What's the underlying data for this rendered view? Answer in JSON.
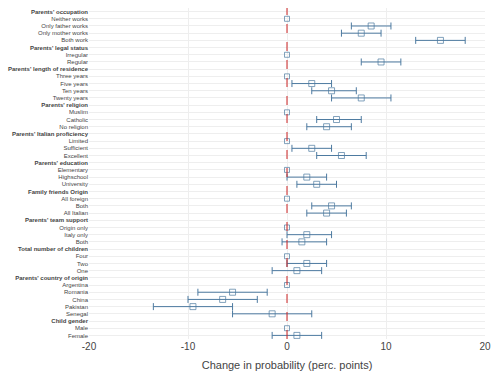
{
  "chart_data": {
    "type": "dot",
    "orientation": "horizontal",
    "xlabel": "Change in probability (perc. points)",
    "categories": [
      "Parents' occupation",
      "Neither works",
      "Only father works",
      "Only mother works",
      "Both work",
      "Parents' legal status",
      "Irregular",
      "Regular",
      "Parents' length of residence",
      "Three years",
      "Five years",
      "Ten years",
      "Twenty years",
      "Parents' religion",
      "Muslim",
      "Catholic",
      "No religion",
      "Parents' Italian proficiency",
      "Limited",
      "Sufficient",
      "Excellent",
      "Parents' education",
      "Elementary",
      "Highschool",
      "University",
      "Family friends Origin",
      "All foreign",
      "Both",
      "All Italian",
      "Parents' team support",
      "Origin only",
      "Italy only",
      "Both",
      "Total number of children",
      "Four",
      "Two",
      "One",
      "Parents' country of origin",
      "Argentina",
      "Romania",
      "China",
      "Pakistan",
      "Senegal",
      "Child gender",
      "Male",
      "Female"
    ],
    "values": [
      null,
      0.0,
      8.5,
      7.5,
      15.5,
      null,
      0.0,
      9.5,
      null,
      0.0,
      2.5,
      4.5,
      7.5,
      null,
      0.0,
      5.0,
      4.0,
      null,
      0.0,
      2.5,
      5.5,
      null,
      0.0,
      2.0,
      3.0,
      null,
      0.0,
      4.5,
      4.0,
      null,
      0.0,
      2.0,
      1.5,
      null,
      0.0,
      2.0,
      1.0,
      null,
      0.0,
      -5.5,
      -6.5,
      -9.5,
      -1.5,
      null,
      0.0,
      1.0
    ],
    "lo": [
      null,
      null,
      6.5,
      5.5,
      13.0,
      null,
      null,
      7.5,
      null,
      null,
      0.5,
      2.5,
      4.5,
      null,
      null,
      3.0,
      2.0,
      null,
      null,
      0.5,
      3.0,
      null,
      null,
      0.0,
      1.0,
      null,
      null,
      2.5,
      2.0,
      null,
      null,
      0.0,
      -0.5,
      null,
      null,
      0.0,
      -1.5,
      null,
      null,
      -9.0,
      -10.0,
      -13.5,
      -5.5,
      null,
      null,
      -1.5
    ],
    "hi": [
      null,
      null,
      10.5,
      9.5,
      18.0,
      null,
      null,
      11.5,
      null,
      null,
      4.5,
      7.0,
      10.5,
      null,
      null,
      7.5,
      6.5,
      null,
      null,
      4.5,
      8.0,
      null,
      null,
      4.0,
      5.0,
      null,
      null,
      6.5,
      6.0,
      null,
      null,
      4.5,
      4.0,
      null,
      null,
      4.0,
      3.5,
      null,
      null,
      -2.0,
      -3.0,
      -5.5,
      2.5,
      null,
      null,
      3.5
    ],
    "color": "#4d7aa0",
    "marker": "square-open",
    "ref_line": 0,
    "xlim": [
      -20,
      20
    ],
    "xticks": [
      -20,
      -10,
      0,
      10,
      20
    ],
    "grid": true
  }
}
